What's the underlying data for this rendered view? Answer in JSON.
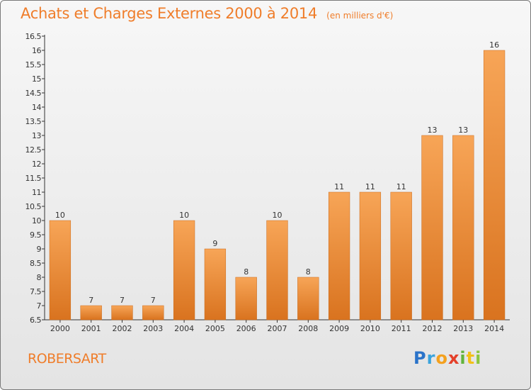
{
  "header": {
    "title": "Achats et Charges Externes 2000 à 2014",
    "subtitle": "(en milliers d'€)"
  },
  "footer": {
    "commune": "ROBERSART",
    "logo_letters": [
      "P",
      "r",
      "o",
      "x",
      "i",
      "t",
      "i"
    ]
  },
  "colors": {
    "accent": "#ef7d2a",
    "bar_top": "#f7a557",
    "bar_bottom": "#d9731f"
  },
  "chart_data": {
    "type": "bar",
    "categories": [
      "2000",
      "2001",
      "2002",
      "2003",
      "2004",
      "2005",
      "2006",
      "2007",
      "2008",
      "2009",
      "2010",
      "2011",
      "2012",
      "2013",
      "2014"
    ],
    "values": [
      10,
      7,
      7,
      7,
      10,
      9,
      8,
      10,
      8,
      11,
      11,
      11,
      13,
      13,
      16
    ],
    "title": "Achats et Charges Externes 2000 à 2014",
    "ylim": [
      6.5,
      16.5
    ],
    "yticks": [
      "6.5",
      "7",
      "7.5",
      "8",
      "8.5",
      "9",
      "9.5",
      "10",
      "10.5",
      "11",
      "11.5",
      "12",
      "12.5",
      "13",
      "13.5",
      "14",
      "14.5",
      "15",
      "15.5",
      "16",
      "16.5"
    ],
    "grid": false,
    "legend": "none"
  }
}
